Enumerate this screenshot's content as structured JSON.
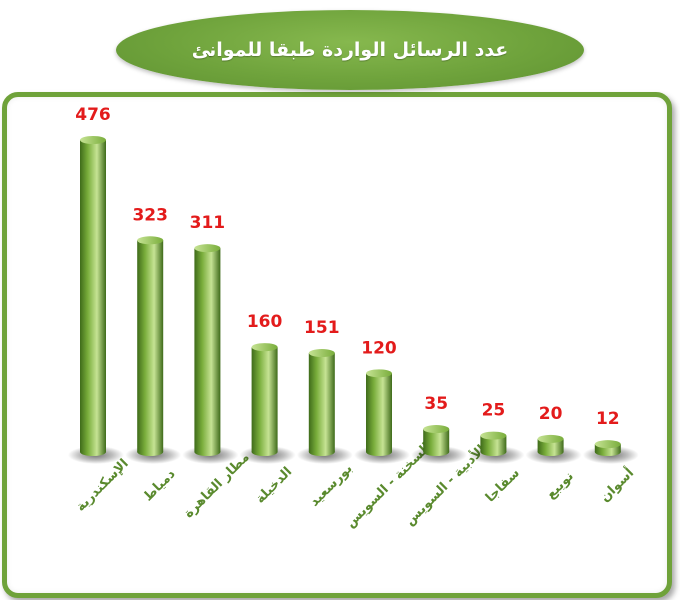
{
  "title": "عدد الرسائل الواردة طبقا للموانئ",
  "colors": {
    "bar_light": "#c6e394",
    "bar_mid": "#79ad3b",
    "bar_dark": "#3f6b1a",
    "value_label": "#e31b1b",
    "category_label": "#5a8a2e",
    "frame": "#6fa23a"
  },
  "chart_data": {
    "type": "bar",
    "title": "عدد الرسائل الواردة طبقا للموانئ",
    "categories": [
      "الإسكندرية",
      "دمياط",
      "مطار القاهرة",
      "الدخيلة",
      "بورسعيد",
      "السخنة - السويس",
      "الأدبية - السويس",
      "سفاجا",
      "نويبع",
      "أسوان"
    ],
    "values": [
      476,
      323,
      311,
      160,
      151,
      120,
      35,
      25,
      20,
      12
    ],
    "ylim": [
      0,
      476
    ],
    "xlabel": "",
    "ylabel": "",
    "grid": false,
    "legend": "none"
  }
}
